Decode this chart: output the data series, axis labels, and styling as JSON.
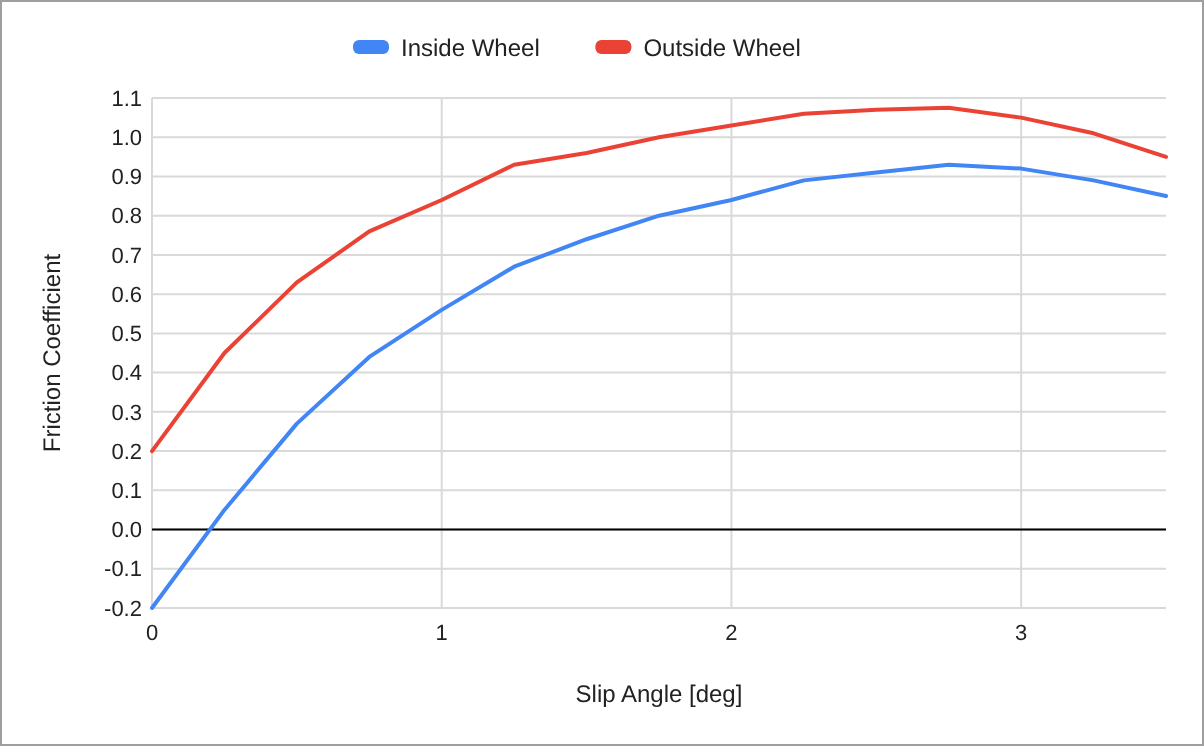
{
  "chart_data": {
    "type": "line",
    "xlabel": "Slip Angle [deg]",
    "ylabel": "Friction Coefficient",
    "x": [
      0,
      0.25,
      0.5,
      0.75,
      1,
      1.25,
      1.5,
      1.75,
      2,
      2.25,
      2.5,
      2.75,
      3,
      3.25,
      3.5
    ],
    "series": [
      {
        "name": "Inside Wheel",
        "color": "#4285f4",
        "values": [
          -0.2,
          0.05,
          0.27,
          0.44,
          0.56,
          0.67,
          0.74,
          0.8,
          0.84,
          0.89,
          0.91,
          0.93,
          0.92,
          0.89,
          0.85
        ]
      },
      {
        "name": "Outside Wheel",
        "color": "#ea4335",
        "values": [
          0.2,
          0.45,
          0.63,
          0.76,
          0.84,
          0.93,
          0.96,
          1.0,
          1.03,
          1.06,
          1.07,
          1.075,
          1.05,
          1.01,
          0.95
        ]
      }
    ],
    "xlim": [
      0,
      3.5
    ],
    "xticks": [
      0,
      1,
      2,
      3
    ],
    "ylim": [
      -0.2,
      1.1
    ],
    "yticks": [
      -0.2,
      -0.1,
      {
        "value": 0,
        "label": "0.0"
      },
      0.1,
      0.2,
      0.3,
      0.4,
      0.5,
      0.6,
      0.7,
      0.8,
      0.9,
      {
        "value": 1,
        "label": "1.0"
      },
      1.1
    ],
    "ref_lines": [
      {
        "axis": "y",
        "value": 0,
        "color": "#000000"
      }
    ],
    "grid": true,
    "legend": "top",
    "marker": "none",
    "line_style": "solid"
  }
}
